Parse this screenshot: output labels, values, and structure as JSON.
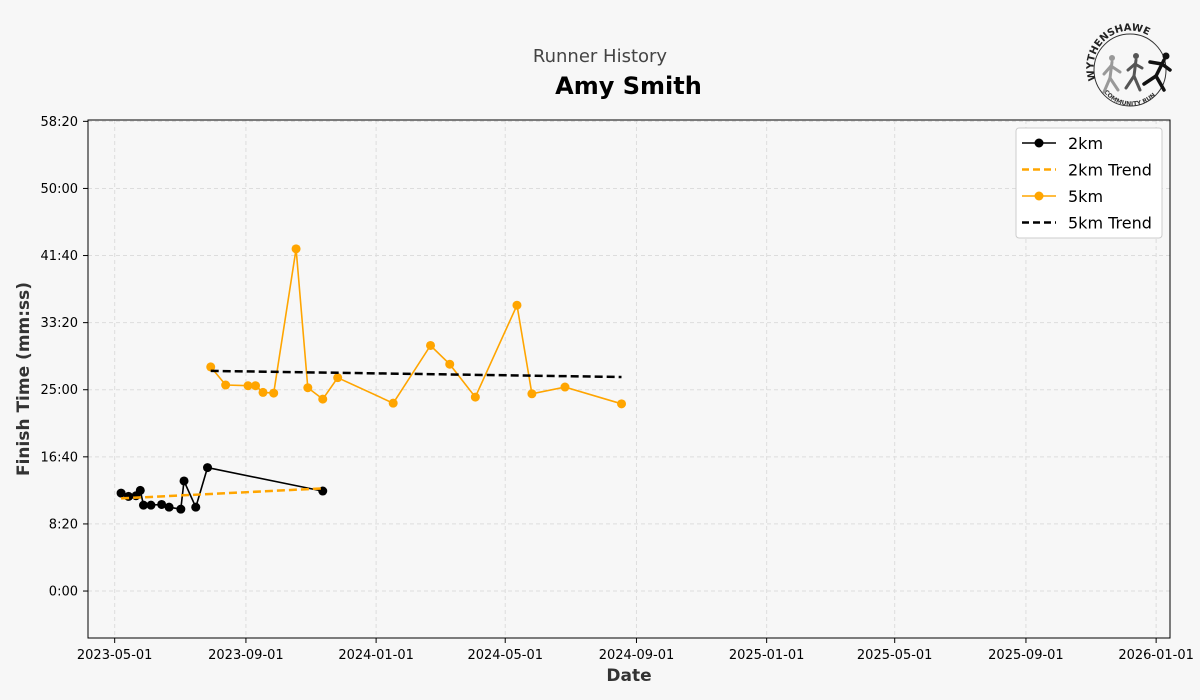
{
  "header": {
    "subtitle": "Runner History",
    "title": "Amy Smith"
  },
  "logo": {
    "text_top": "WYTHENSHAWE",
    "text_bottom": "COMMUNITY RUN"
  },
  "colors": {
    "series_2km": "#000000",
    "series_5km": "#ffa500",
    "trend_2km": "#ffa500",
    "trend_5km": "#000000",
    "grid": "#dddddd",
    "background": "#f7f7f7"
  },
  "chart_data": {
    "type": "line",
    "xlabel": "Date",
    "ylabel": "Finish Time (mm:ss)",
    "xlim": [
      "2023-04-06",
      "2026-01-14"
    ],
    "ylim": [
      -350,
      3510
    ],
    "x_ticks": [
      "2023-05-01",
      "2023-09-01",
      "2024-01-01",
      "2024-05-01",
      "2024-09-01",
      "2025-01-01",
      "2025-05-01",
      "2025-09-01",
      "2026-01-01"
    ],
    "y_ticks": [
      {
        "value": 0,
        "label": "0:00"
      },
      {
        "value": 500,
        "label": "8:20"
      },
      {
        "value": 1000,
        "label": "16:40"
      },
      {
        "value": 1500,
        "label": "25:00"
      },
      {
        "value": 2000,
        "label": "33:20"
      },
      {
        "value": 2500,
        "label": "41:40"
      },
      {
        "value": 3000,
        "label": "50:00"
      },
      {
        "value": 3500,
        "label": "58:20"
      }
    ],
    "grid": true,
    "legend_position": "top-right",
    "series": [
      {
        "name": "2km",
        "style": "solid-markers",
        "points": [
          {
            "x": "2023-05-07",
            "y": 730
          },
          {
            "x": "2023-05-14",
            "y": 705
          },
          {
            "x": "2023-05-21",
            "y": 710
          },
          {
            "x": "2023-05-25",
            "y": 750
          },
          {
            "x": "2023-05-28",
            "y": 640
          },
          {
            "x": "2023-06-04",
            "y": 640
          },
          {
            "x": "2023-06-14",
            "y": 645
          },
          {
            "x": "2023-06-21",
            "y": 625
          },
          {
            "x": "2023-07-02",
            "y": 610
          },
          {
            "x": "2023-07-05",
            "y": 820
          },
          {
            "x": "2023-07-16",
            "y": 625
          },
          {
            "x": "2023-07-27",
            "y": 920
          },
          {
            "x": "2023-11-12",
            "y": 745
          }
        ]
      },
      {
        "name": "2km Trend",
        "style": "dashed",
        "points": [
          {
            "x": "2023-05-07",
            "y": 690
          },
          {
            "x": "2023-11-12",
            "y": 765
          }
        ]
      },
      {
        "name": "5km",
        "style": "solid-markers",
        "points": [
          {
            "x": "2023-07-30",
            "y": 1670
          },
          {
            "x": "2023-08-13",
            "y": 1535
          },
          {
            "x": "2023-09-03",
            "y": 1530
          },
          {
            "x": "2023-09-10",
            "y": 1530
          },
          {
            "x": "2023-09-17",
            "y": 1480
          },
          {
            "x": "2023-09-27",
            "y": 1475
          },
          {
            "x": "2023-10-18",
            "y": 2550
          },
          {
            "x": "2023-10-29",
            "y": 1515
          },
          {
            "x": "2023-11-12",
            "y": 1430
          },
          {
            "x": "2023-11-26",
            "y": 1590
          },
          {
            "x": "2024-01-17",
            "y": 1400
          },
          {
            "x": "2024-02-21",
            "y": 1830
          },
          {
            "x": "2024-03-10",
            "y": 1690
          },
          {
            "x": "2024-04-03",
            "y": 1445
          },
          {
            "x": "2024-05-12",
            "y": 2130
          },
          {
            "x": "2024-05-26",
            "y": 1470
          },
          {
            "x": "2024-06-26",
            "y": 1520
          },
          {
            "x": "2024-08-18",
            "y": 1395
          }
        ]
      },
      {
        "name": "5km Trend",
        "style": "dashed",
        "points": [
          {
            "x": "2023-07-30",
            "y": 1640
          },
          {
            "x": "2024-08-18",
            "y": 1595
          }
        ]
      }
    ]
  }
}
